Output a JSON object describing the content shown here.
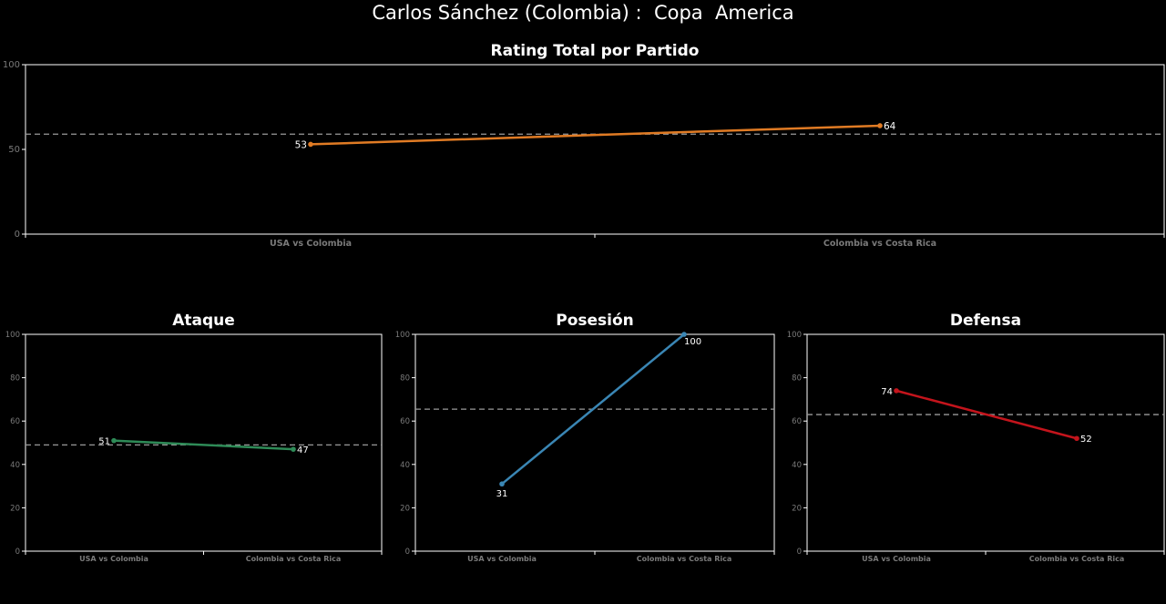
{
  "title": "Carlos Sánchez (Colombia) :  Copa  America",
  "colors": {
    "background": "#000000",
    "frame": "#ffffff",
    "reference": "#9a9a9a",
    "tick_text": "#7a7a7a"
  },
  "chart_data": [
    {
      "type": "line",
      "title": "Rating Total por Partido",
      "categories": [
        "USA vs Colombia",
        "Colombia vs Costa Rica"
      ],
      "series": [
        {
          "values": [
            53,
            64
          ],
          "color": "#e07b24"
        }
      ],
      "data_labels": [
        "53",
        "64"
      ],
      "reference_line": 59,
      "ylim": [
        0,
        100
      ],
      "yticks": [
        "0",
        "50",
        "100"
      ]
    },
    {
      "type": "line",
      "title": "Ataque",
      "categories": [
        "USA vs Colombia",
        "Colombia vs Costa Rica"
      ],
      "series": [
        {
          "values": [
            51,
            47
          ],
          "color": "#2e8b57"
        }
      ],
      "data_labels": [
        "51",
        "47"
      ],
      "reference_line": 49,
      "ylim": [
        0,
        100
      ],
      "yticks": [
        "0",
        "20",
        "40",
        "60",
        "80",
        "100"
      ]
    },
    {
      "type": "line",
      "title": "Posesión",
      "categories": [
        "USA vs Colombia",
        "Colombia vs Costa Rica"
      ],
      "series": [
        {
          "values": [
            31,
            100
          ],
          "color": "#3a86b4"
        }
      ],
      "data_labels": [
        "31",
        "100"
      ],
      "reference_line": 65.5,
      "ylim": [
        0,
        100
      ],
      "yticks": [
        "0",
        "20",
        "40",
        "60",
        "80",
        "100"
      ]
    },
    {
      "type": "line",
      "title": "Defensa",
      "categories": [
        "USA vs Colombia",
        "Colombia vs Costa Rica"
      ],
      "series": [
        {
          "values": [
            74,
            52
          ],
          "color": "#c4141c"
        }
      ],
      "data_labels": [
        "74",
        "52"
      ],
      "reference_line": 63,
      "ylim": [
        0,
        100
      ],
      "yticks": [
        "0",
        "20",
        "40",
        "60",
        "80",
        "100"
      ]
    }
  ]
}
